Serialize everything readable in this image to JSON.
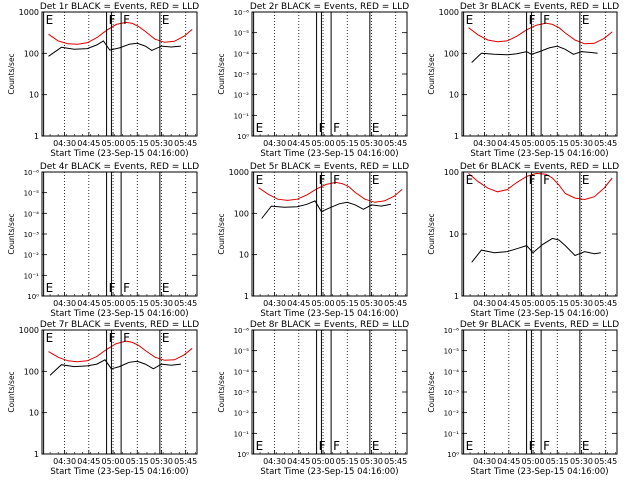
{
  "x_tick_labels": [
    "04:30",
    "04:45",
    "05:00",
    "05:15",
    "05:30",
    "05:45"
  ],
  "xlabel": "Start Time (23-Sep-15 04:16:00)",
  "ylabel": "Counts/sec",
  "chart_data": [
    {
      "type": "line",
      "title": "Det 1r BLACK = Events, RED = LLD",
      "y_tick_labels": [
        "1",
        "10",
        "100",
        "1000"
      ],
      "ylim": [
        1,
        1000
      ],
      "ylog": true,
      "series": [
        {
          "color": "#000000",
          "x": [
            "04:20",
            "04:28",
            "04:36",
            "04:44",
            "04:50",
            "04:54",
            "04:58",
            "05:04",
            "05:10",
            "05:15",
            "05:20",
            "05:24",
            "05:30",
            "05:36",
            "05:42"
          ],
          "values": [
            85,
            140,
            125,
            130,
            160,
            200,
            120,
            135,
            165,
            175,
            150,
            118,
            150,
            142,
            150
          ]
        },
        {
          "color": "#dd0000",
          "x": [
            "04:20",
            "04:26",
            "04:32",
            "04:38",
            "04:44",
            "04:50",
            "04:56",
            "05:02",
            "05:08",
            "05:12",
            "05:16",
            "05:20",
            "05:26",
            "05:32",
            "05:38",
            "05:44",
            "05:49"
          ],
          "values": [
            290,
            200,
            170,
            165,
            180,
            240,
            360,
            500,
            560,
            530,
            440,
            340,
            220,
            185,
            195,
            260,
            380
          ]
        }
      ]
    },
    {
      "type": "line",
      "title": "Det 2r BLACK = Events, RED = LLD",
      "y_tick_labels": [
        "10⁰",
        "10⁻¹",
        "10⁻²",
        "10⁻³",
        "10⁻⁴",
        "10⁻⁵",
        "10⁻⁶"
      ],
      "series": []
    },
    {
      "type": "line",
      "title": "Det 3r BLACK = Events, RED = LLD",
      "y_tick_labels": [
        "1",
        "10",
        "100",
        "1000"
      ],
      "ylim": [
        1,
        1000
      ],
      "ylog": true,
      "series": [
        {
          "color": "#000000",
          "x": [
            "04:22",
            "04:28",
            "04:36",
            "04:44",
            "04:50",
            "04:56",
            "04:59",
            "05:04",
            "05:10",
            "05:15",
            "05:20",
            "05:25",
            "05:30",
            "05:36",
            "05:40"
          ],
          "values": [
            60,
            100,
            95,
            92,
            98,
            110,
            95,
            110,
            135,
            150,
            125,
            95,
            110,
            105,
            100
          ]
        },
        {
          "color": "#dd0000",
          "x": [
            "04:20",
            "04:26",
            "04:32",
            "04:38",
            "04:44",
            "04:50",
            "04:56",
            "05:02",
            "05:08",
            "05:12",
            "05:16",
            "05:20",
            "05:26",
            "05:32",
            "05:38",
            "05:44",
            "05:49"
          ],
          "values": [
            420,
            280,
            210,
            190,
            200,
            260,
            370,
            480,
            540,
            500,
            420,
            310,
            210,
            170,
            175,
            230,
            330
          ]
        }
      ]
    },
    {
      "type": "line",
      "title": "Det 4r BLACK = Events, RED = LLD",
      "y_tick_labels": [
        "10⁰",
        "10⁻¹",
        "10⁻²",
        "10⁻³",
        "10⁻⁴",
        "10⁻⁵",
        "10⁻⁶"
      ],
      "series": []
    },
    {
      "type": "line",
      "title": "Det 5r BLACK = Events, RED = LLD",
      "y_tick_labels": [
        "1",
        "10",
        "100",
        "1000"
      ],
      "ylim": [
        1,
        1000
      ],
      "ylog": true,
      "series": [
        {
          "color": "#000000",
          "x": [
            "04:22",
            "04:28",
            "04:36",
            "04:44",
            "04:50",
            "04:55",
            "04:59",
            "05:04",
            "05:10",
            "05:15",
            "05:20",
            "05:25",
            "05:30",
            "05:36",
            "05:42"
          ],
          "values": [
            75,
            150,
            140,
            145,
            165,
            200,
            110,
            135,
            170,
            185,
            160,
            125,
            160,
            150,
            165
          ]
        },
        {
          "color": "#dd0000",
          "x": [
            "04:20",
            "04:26",
            "04:32",
            "04:38",
            "04:44",
            "04:50",
            "04:56",
            "05:02",
            "05:08",
            "05:12",
            "05:16",
            "05:20",
            "05:26",
            "05:32",
            "05:38",
            "05:44",
            "05:49"
          ],
          "values": [
            420,
            290,
            220,
            205,
            220,
            280,
            390,
            500,
            560,
            520,
            440,
            320,
            220,
            185,
            200,
            260,
            380
          ]
        }
      ]
    },
    {
      "type": "line",
      "title": "Det 6r BLACK = Events, RED = LLD",
      "y_tick_labels": [
        "1",
        "10",
        "100"
      ],
      "ylim": [
        1,
        100
      ],
      "ylog": true,
      "series": [
        {
          "color": "#000000",
          "x": [
            "04:22",
            "04:28",
            "04:36",
            "04:44",
            "04:50",
            "04:56",
            "05:00",
            "05:06",
            "05:12",
            "05:16",
            "05:20",
            "05:26",
            "05:32",
            "05:38",
            "05:42"
          ],
          "values": [
            3.5,
            5.5,
            5.0,
            5.2,
            5.8,
            6.5,
            5.0,
            6.8,
            8.5,
            8.0,
            6.5,
            4.5,
            5.2,
            4.8,
            5.0
          ]
        },
        {
          "color": "#dd0000",
          "x": [
            "04:20",
            "04:26",
            "04:32",
            "04:38",
            "04:44",
            "04:50",
            "04:56",
            "05:02",
            "05:08",
            "05:12",
            "05:16",
            "05:20",
            "05:26",
            "05:32",
            "05:38",
            "05:44",
            "05:49"
          ],
          "values": [
            95,
            70,
            55,
            48,
            52,
            68,
            85,
            95,
            92,
            80,
            62,
            45,
            38,
            36,
            40,
            55,
            80
          ]
        }
      ]
    },
    {
      "type": "line",
      "title": "Det 7r BLACK = Events, RED = LLD",
      "y_tick_labels": [
        "1",
        "10",
        "100",
        "1000"
      ],
      "ylim": [
        1,
        1000
      ],
      "ylog": true,
      "series": [
        {
          "color": "#000000",
          "x": [
            "04:21",
            "04:28",
            "04:36",
            "04:44",
            "04:50",
            "04:55",
            "04:59",
            "05:04",
            "05:10",
            "05:15",
            "05:20",
            "05:25",
            "05:30",
            "05:36",
            "05:42"
          ],
          "values": [
            80,
            145,
            130,
            135,
            150,
            190,
            115,
            130,
            165,
            175,
            150,
            115,
            150,
            140,
            150
          ]
        },
        {
          "color": "#dd0000",
          "x": [
            "04:20",
            "04:26",
            "04:32",
            "04:38",
            "04:44",
            "04:50",
            "04:56",
            "05:02",
            "05:08",
            "05:12",
            "05:16",
            "05:20",
            "05:26",
            "05:32",
            "05:38",
            "05:44",
            "05:49"
          ],
          "values": [
            300,
            220,
            180,
            170,
            180,
            230,
            340,
            470,
            540,
            500,
            420,
            320,
            220,
            185,
            190,
            250,
            360
          ]
        }
      ]
    },
    {
      "type": "line",
      "title": "Det 8r BLACK = Events, RED = LLD",
      "y_tick_labels": [
        "10⁰",
        "10⁻¹",
        "10⁻²",
        "10⁻³",
        "10⁻⁴",
        "10⁻⁵",
        "10⁻⁶"
      ],
      "series": []
    },
    {
      "type": "line",
      "title": "Det 9r BLACK = Events, RED = LLD",
      "y_tick_labels": [
        "10⁰",
        "10⁻¹",
        "10⁻²",
        "10⁻³",
        "10⁻⁴",
        "10⁻⁵",
        "10⁻⁶"
      ],
      "series": []
    }
  ],
  "markers": {
    "x": [
      "04:17",
      "04:56",
      "04:59",
      "05:05",
      "05:29"
    ],
    "labels": [
      "E",
      "F",
      "",
      "F",
      "E"
    ]
  }
}
